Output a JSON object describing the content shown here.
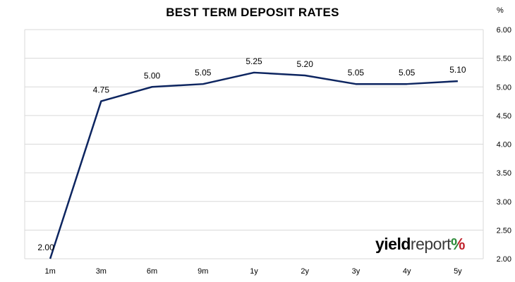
{
  "chart_data": {
    "type": "line",
    "title": "BEST TERM DEPOSIT RATES",
    "unit": "%",
    "categories": [
      "1m",
      "3m",
      "6m",
      "9m",
      "1y",
      "2y",
      "3y",
      "4y",
      "5y"
    ],
    "series": [
      {
        "values": [
          2.0,
          4.75,
          5.0,
          5.05,
          5.25,
          5.2,
          5.05,
          5.05,
          5.1
        ],
        "color": "#0d2560"
      }
    ],
    "data_labels": [
      "2.00",
      "4.75",
      "5.00",
      "5.05",
      "5.25",
      "5.20",
      "5.05",
      "5.05",
      "5.10"
    ],
    "y_ticks": [
      "6.00",
      "5.50",
      "5.00",
      "4.50",
      "4.00",
      "3.50",
      "3.00",
      "2.50",
      "2.00"
    ],
    "ylim": [
      2.0,
      6.0
    ],
    "y_axis_position": "right",
    "grid": true,
    "legend": "none"
  },
  "logo": {
    "yield": "yield",
    "report": "report",
    "pct": "%"
  },
  "colors": {
    "grid": "#d9d9d9",
    "line": "#0d2560",
    "logo_green": "#2e8b3a",
    "logo_red": "#c0202a"
  }
}
